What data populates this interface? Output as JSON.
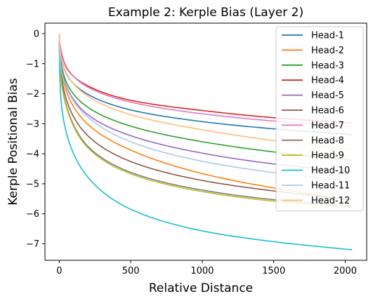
{
  "chart_data": {
    "type": "line",
    "title": "Example 2: Kerple Bias (Layer 2)",
    "xlabel": "Relative Distance",
    "ylabel": "Kerple Positional Bias",
    "xlim": [
      -100,
      2150
    ],
    "ylim": [
      -7.55,
      0.35
    ],
    "xticks": [
      0,
      500,
      1000,
      1500,
      2000
    ],
    "xtick_labels": [
      "0",
      "500",
      "1000",
      "1500",
      "2000"
    ],
    "yticks": [
      0,
      -1,
      -2,
      -3,
      -4,
      -5,
      -6,
      -7
    ],
    "ytick_labels": [
      "0",
      "−1",
      "−2",
      "−3",
      "−4",
      "−5",
      "−6",
      "−7"
    ],
    "grid": false,
    "legend_position": "top-right",
    "x": [
      0,
      10,
      50,
      200,
      500,
      1000,
      1500,
      2048
    ],
    "series": [
      {
        "name": "Head-1",
        "color": "#1f77b4",
        "values": [
          0,
          -0.66,
          -1.34,
          -2.02,
          -2.54,
          -2.93,
          -3.17,
          -3.36
        ]
      },
      {
        "name": "Head-2",
        "color": "#ff7f0e",
        "values": [
          0,
          -1.02,
          -1.92,
          -3.02,
          -3.88,
          -4.66,
          -5.14,
          -5.54
        ]
      },
      {
        "name": "Head-3",
        "color": "#2ca02c",
        "values": [
          0,
          -0.85,
          -1.62,
          -2.45,
          -3.08,
          -3.6,
          -3.94,
          -4.22
        ]
      },
      {
        "name": "Head-4",
        "color": "#d62728",
        "values": [
          0,
          -0.5,
          -1.13,
          -1.74,
          -2.22,
          -2.56,
          -2.8,
          -2.98
        ]
      },
      {
        "name": "Head-5",
        "color": "#9467bd",
        "values": [
          0,
          -0.95,
          -1.75,
          -2.7,
          -3.4,
          -3.98,
          -4.34,
          -4.6
        ]
      },
      {
        "name": "Head-6",
        "color": "#8c564b",
        "values": [
          0,
          -1.18,
          -2.2,
          -3.4,
          -4.26,
          -4.89,
          -5.24,
          -5.53
        ]
      },
      {
        "name": "Head-7",
        "color": "#e377c2",
        "values": [
          0,
          -0.48,
          -1.1,
          -1.78,
          -2.28,
          -2.67,
          -2.91,
          -3.1
        ]
      },
      {
        "name": "Head-8",
        "color": "#7f7f7f",
        "values": [
          0,
          -1.35,
          -2.4,
          -3.75,
          -4.62,
          -5.21,
          -5.53,
          -5.73
        ]
      },
      {
        "name": "Head-9",
        "color": "#bcbd22",
        "values": [
          0,
          -1.38,
          -2.45,
          -3.8,
          -4.67,
          -5.26,
          -5.58,
          -5.78
        ]
      },
      {
        "name": "Head-10",
        "color": "#17becf",
        "values": [
          0,
          -2.05,
          -3.3,
          -4.78,
          -5.85,
          -6.57,
          -6.93,
          -7.2
        ]
      },
      {
        "name": "Head-11",
        "color": "#aec7e8",
        "values": [
          0,
          -1.05,
          -1.8,
          -2.78,
          -3.6,
          -4.25,
          -4.63,
          -4.92
        ]
      },
      {
        "name": "Head-12",
        "color": "#ffbb78",
        "values": [
          0,
          -0.7,
          -1.32,
          -2.08,
          -2.7,
          -3.2,
          -3.56,
          -3.85
        ]
      }
    ]
  }
}
